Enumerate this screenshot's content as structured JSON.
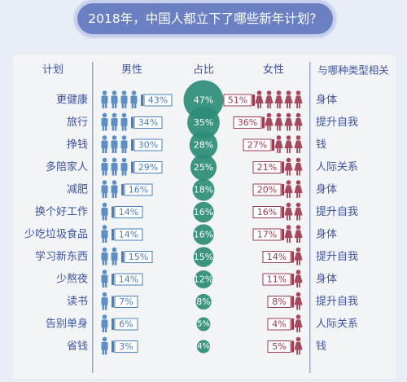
{
  "title": "2018年，中国人都立下了哪些新年计划？",
  "colors": {
    "male": "#5d8fc7",
    "male_bar": "#4a7fba",
    "female": "#a4485d",
    "female_bar": "#9b3b52",
    "circle": "#2d8c76",
    "text": "#3f55a0",
    "background": "#e9edf6",
    "panel": "#f3f4f6"
  },
  "chart_data": {
    "type": "table",
    "columns": {
      "plan": "计划",
      "male": "男性",
      "share": "占比",
      "female": "女性",
      "category": "与哪种类型相关"
    },
    "rows": [
      {
        "plan": "更健康",
        "male": 43,
        "share": 47,
        "female": 51,
        "category": "身体"
      },
      {
        "plan": "旅行",
        "male": 34,
        "share": 35,
        "female": 36,
        "category": "提升自我"
      },
      {
        "plan": "挣钱",
        "male": 30,
        "share": 28,
        "female": 27,
        "category": "钱"
      },
      {
        "plan": "多陪家人",
        "male": 29,
        "share": 25,
        "female": 21,
        "category": "人际关系"
      },
      {
        "plan": "减肥",
        "male": 16,
        "share": 18,
        "female": 20,
        "category": "身体"
      },
      {
        "plan": "换个好工作",
        "male": 14,
        "share": 16,
        "female": 16,
        "category": "提升自我"
      },
      {
        "plan": "少吃垃圾食品",
        "male": 14,
        "share": 16,
        "female": 17,
        "category": "身体"
      },
      {
        "plan": "学习新东西",
        "male": 15,
        "share": 15,
        "female": 14,
        "category": "提升自我"
      },
      {
        "plan": "少熬夜",
        "male": 14,
        "share": 12,
        "female": 11,
        "category": "身体"
      },
      {
        "plan": "读书",
        "male": 7,
        "share": 8,
        "female": 8,
        "category": "提升自我"
      },
      {
        "plan": "告别单身",
        "male": 6,
        "share": 5,
        "female": 4,
        "category": "人际关系"
      },
      {
        "plan": "省钱",
        "male": 3,
        "share": 4,
        "female": 5,
        "category": "钱"
      }
    ]
  }
}
